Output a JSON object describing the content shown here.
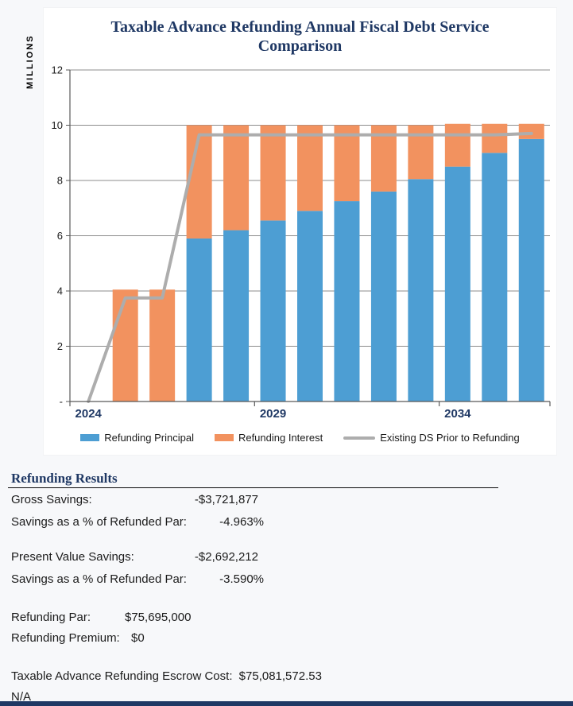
{
  "page": {
    "background_color": "#f7f8fa",
    "footer_bar_color": "#1f3864"
  },
  "chart": {
    "title_line1": "Taxable Advance Refunding Annual Fiscal Debt Service",
    "title_line2": "Comparison",
    "y_axis_title": "MILLIONS",
    "title_color": "#1f3864",
    "legend": [
      {
        "label": "Refunding Principal"
      },
      {
        "label": "Refunding Interest"
      },
      {
        "label": "Existing DS Prior to Refunding"
      }
    ]
  },
  "chart_data": {
    "type": "bar",
    "subtype": "stacked-bars-with-line-overlay",
    "title": "Taxable Advance Refunding Annual Fiscal Debt Service Comparison",
    "xlabel": "",
    "ylabel": "MILLIONS",
    "ylim": [
      0,
      12
    ],
    "grid": true,
    "legend_position": "bottom",
    "categories": [
      2024,
      2025,
      2026,
      2027,
      2028,
      2029,
      2030,
      2031,
      2032,
      2033,
      2034,
      2035,
      2036
    ],
    "x_tick_labels": [
      {
        "index": 0,
        "label": "2024"
      },
      {
        "index": 5,
        "label": "2029"
      },
      {
        "index": 10,
        "label": "2034"
      }
    ],
    "y_ticks": [
      {
        "value": 0,
        "label": "-"
      },
      {
        "value": 2,
        "label": "2"
      },
      {
        "value": 4,
        "label": "4"
      },
      {
        "value": 6,
        "label": "6"
      },
      {
        "value": 8,
        "label": "8"
      },
      {
        "value": 10,
        "label": "10"
      },
      {
        "value": 12,
        "label": "12"
      }
    ],
    "series": [
      {
        "name": "Refunding Principal",
        "type": "bar",
        "stack": "debt-service",
        "color": "#4d9ed3",
        "values": [
          0,
          0,
          0,
          5.9,
          6.2,
          6.55,
          6.9,
          7.25,
          7.6,
          8.05,
          8.5,
          9.0,
          9.5
        ]
      },
      {
        "name": "Refunding Interest",
        "type": "bar",
        "stack": "debt-service",
        "color": "#f2925f",
        "values": [
          0,
          4.05,
          4.05,
          4.1,
          3.8,
          3.45,
          3.1,
          2.75,
          2.4,
          1.95,
          1.55,
          1.05,
          0.55
        ]
      },
      {
        "name": "Existing DS Prior to Refunding",
        "type": "line",
        "color": "#adadad",
        "values": [
          0,
          3.75,
          3.75,
          9.65,
          9.65,
          9.65,
          9.65,
          9.65,
          9.65,
          9.65,
          9.65,
          9.65,
          9.7
        ]
      }
    ]
  },
  "results": {
    "heading": "Refunding Results",
    "gross_savings": {
      "label": "Gross Savings:",
      "value": "-$3,721,877"
    },
    "gross_pct": {
      "label": "Savings as a % of Refunded Par:",
      "value": "-4.963%"
    },
    "pv_savings": {
      "label": "Present Value Savings:",
      "value": "-$2,692,212"
    },
    "pv_pct": {
      "label": "Savings as a % of Refunded Par:",
      "value": "-3.590%"
    },
    "refunding_par": {
      "label": "Refunding Par:",
      "value": "$75,695,000"
    },
    "refunding_premium": {
      "label": "Refunding Premium:",
      "value": "$0"
    },
    "escrow": {
      "label": "Taxable Advance Refunding Escrow Cost:",
      "value": "$75,081,572.53"
    },
    "na": {
      "label": "N/A"
    }
  }
}
